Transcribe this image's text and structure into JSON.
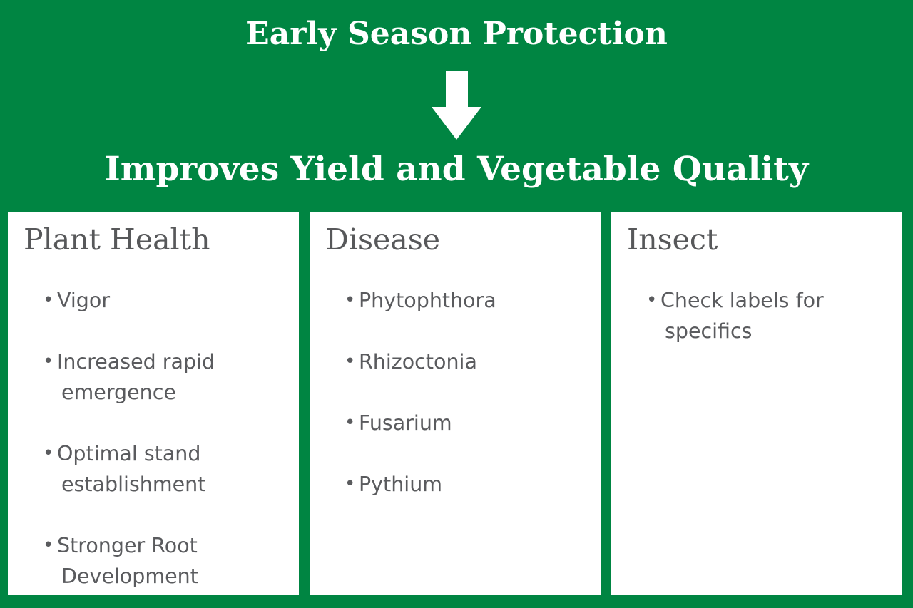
{
  "colors": {
    "accent_green": "#008542",
    "panel_background": "#ffffff",
    "heading_text": "#57585a",
    "bullet_text": "#5a5b5e",
    "header_text": "#ffffff"
  },
  "header": {
    "title": "Early Season Protection",
    "arrow_icon": "down-arrow-icon",
    "subtitle": "Improves Yield and Vegetable Quality"
  },
  "columns": [
    {
      "heading": "Plant Health",
      "bullets": [
        "Vigor",
        "Increased rapid emergence",
        "Optimal stand establishment",
        "Stronger Root Development"
      ]
    },
    {
      "heading": "Disease",
      "bullets": [
        "Phytophthora",
        "Rhizoctonia",
        "Fusarium",
        "Pythium"
      ]
    },
    {
      "heading": "Insect",
      "bullets": [
        "Check labels for specifics"
      ]
    }
  ]
}
